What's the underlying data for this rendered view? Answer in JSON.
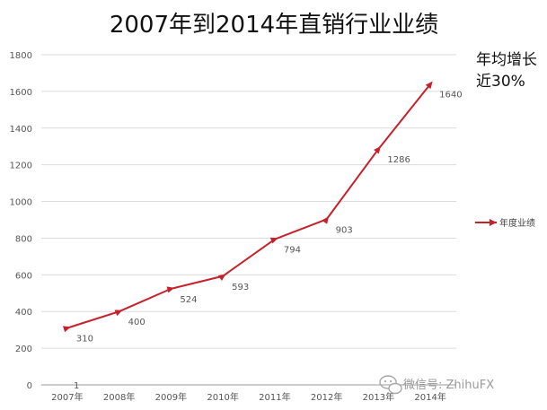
{
  "chart_data": {
    "type": "line",
    "title": "2007年到2014年直销行业业绩",
    "categories": [
      "2007年",
      "2008年",
      "2009年",
      "2010年",
      "2011年",
      "2012年",
      "2013年",
      "2014年"
    ],
    "series": [
      {
        "name": "年度业绩",
        "values": [
          310,
          400,
          524,
          593,
          794,
          903,
          1286,
          1640
        ],
        "labels": [
          "310",
          "400",
          "524",
          "593",
          "794",
          "903",
          "1286",
          "1640"
        ],
        "color": "#c8202a"
      }
    ],
    "ylim": [
      0,
      1800
    ],
    "yticks": [
      0,
      200,
      400,
      600,
      800,
      1000,
      1200,
      1400,
      1600,
      1800
    ],
    "grid": true,
    "legend": "right",
    "annotations": [
      "年均增长",
      "近30%",
      "1"
    ]
  },
  "watermark": {
    "text": "微信号: ZhihuFX",
    "icon": "wechat-icon"
  }
}
